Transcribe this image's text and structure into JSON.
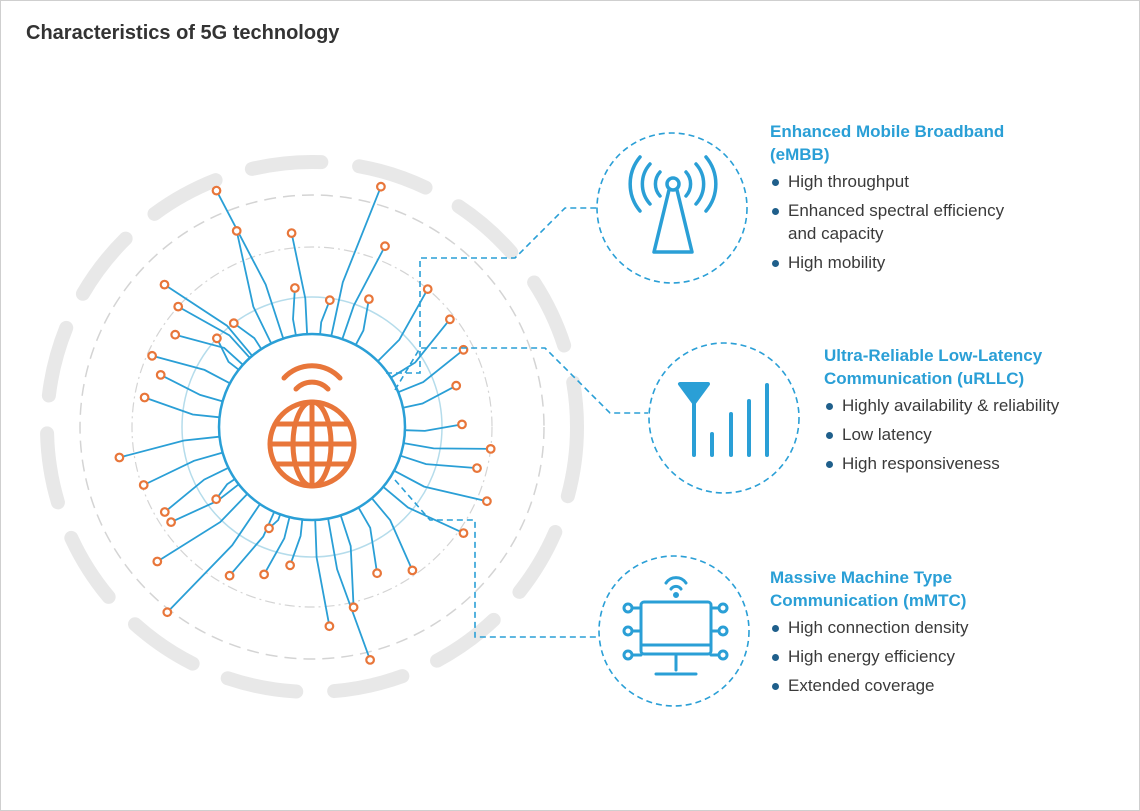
{
  "title": "Characteristics of 5G technology",
  "colors": {
    "accent_blue": "#2a9fd6",
    "accent_orange": "#e8763a",
    "bullet": "#1f5f8b",
    "ring_gray": "#e6e6e6"
  },
  "features": [
    {
      "icon": "antenna-tower-icon",
      "title": "Enhanced Mobile Broadband (eMBB)",
      "items": [
        "High throughput",
        "Enhanced spectral efficiency and capacity",
        "High mobility"
      ]
    },
    {
      "icon": "signal-bars-icon",
      "title": "Ultra-Reliable Low-Latency Communication (uRLLC)",
      "items": [
        "Highly availability & reliability",
        "Low latency",
        "High responsiveness"
      ]
    },
    {
      "icon": "connected-monitor-icon",
      "title": "Massive Machine Type Communication (mMTC)",
      "items": [
        "High connection density",
        "High energy efficiency",
        "Extended coverage"
      ]
    }
  ]
}
